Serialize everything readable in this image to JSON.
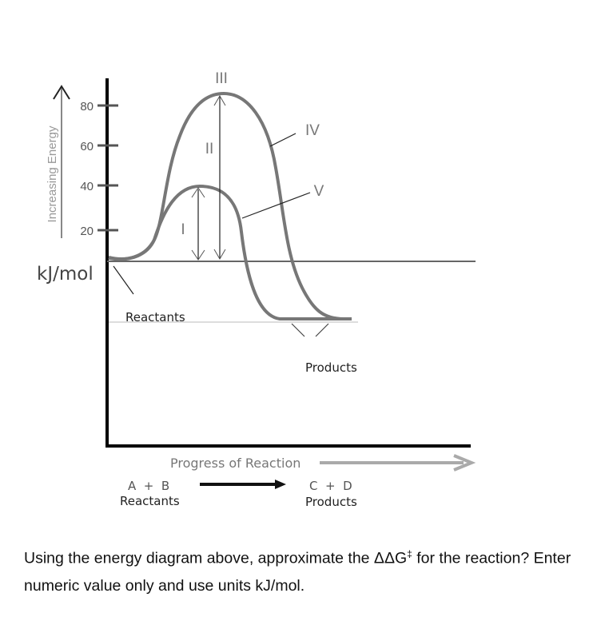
{
  "diagram": {
    "y_axis_label": "Increasing Energy",
    "y_unit": "kJ/mol",
    "y_ticks": [
      "80",
      "60",
      "40",
      "20"
    ],
    "x_axis_label": "Progress of Reaction",
    "curve_labels": {
      "peak": "III",
      "big_gap": "II",
      "small_gap": "I",
      "upper_curve": "IV",
      "lower_curve": "V"
    },
    "reactants_label": "Reactants",
    "products_label": "Products",
    "equation": {
      "left": "A  +  B",
      "left_caption": "Reactants",
      "right": "C  +  D",
      "right_caption": "Products"
    }
  },
  "question": {
    "text_before": "Using the energy diagram above, approximate the ΔΔG",
    "superscript": "‡",
    "text_after": " for the reaction? Enter numeric value only and use units kJ/mol."
  }
}
